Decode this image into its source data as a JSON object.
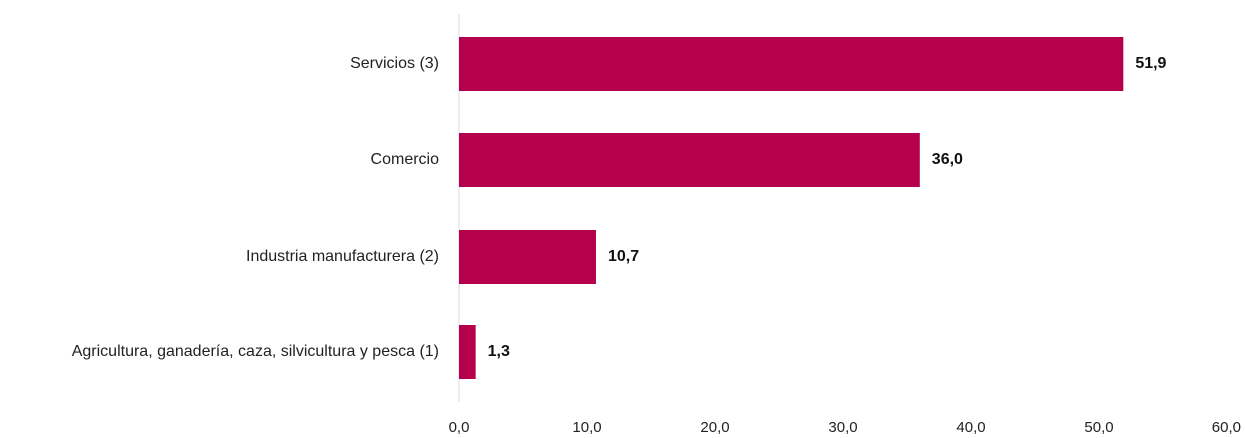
{
  "chart_data": {
    "type": "bar",
    "orientation": "horizontal",
    "categories": [
      "Servicios (3)",
      "Comercio",
      "Industria manufacturera (2)",
      "Agricultura, ganadería, caza, silvicultura y pesca (1)"
    ],
    "values": [
      51.9,
      36.0,
      10.7,
      1.3
    ],
    "value_labels": [
      "51,9",
      "36,0",
      "10,7",
      "1,3"
    ],
    "title": "",
    "xlabel": "",
    "ylabel": "",
    "xlim": [
      0,
      60
    ],
    "ticks": [
      0,
      10,
      20,
      30,
      40,
      50,
      60
    ],
    "tick_labels": [
      "0,0",
      "10,0",
      "20,0",
      "30,0",
      "40,0",
      "50,0",
      "60,0"
    ],
    "grid": false,
    "legend": "none",
    "bar_color": "#B5004B",
    "axis_color": "#D9D9D9"
  }
}
